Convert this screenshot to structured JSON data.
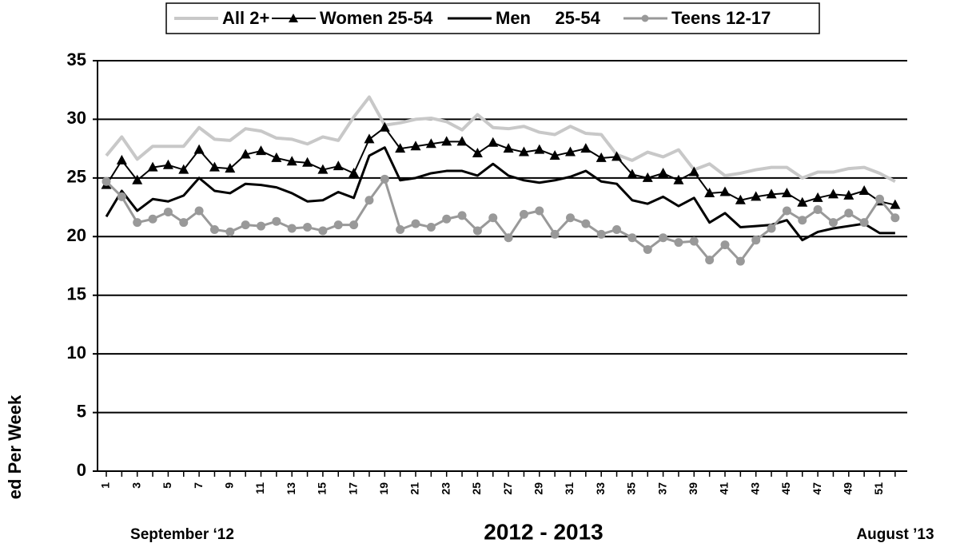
{
  "chart_data": {
    "type": "line",
    "categories": [
      1,
      null,
      3,
      null,
      5,
      null,
      7,
      null,
      9,
      null,
      11,
      null,
      13,
      null,
      15,
      null,
      17,
      null,
      19,
      null,
      21,
      null,
      23,
      null,
      25,
      null,
      27,
      null,
      29,
      null,
      31,
      null,
      33,
      null,
      35,
      null,
      37,
      null,
      39,
      null,
      41,
      null,
      43,
      null,
      45,
      null,
      47,
      null,
      49,
      null,
      51,
      null
    ],
    "ylim": [
      0,
      35
    ],
    "yticks": [
      0,
      5,
      10,
      15,
      20,
      25,
      30,
      35
    ],
    "grid": true,
    "y_label": "ed Per Week",
    "x_label": "2012 - 2013",
    "x_start_label": "September ‘12",
    "x_end_label": "August ’13",
    "legend": "top",
    "series": [
      {
        "name": "All 2+",
        "color": "#c8c8c8",
        "width": 4,
        "marker": null,
        "values": [
          26.9,
          28.5,
          26.6,
          27.7,
          27.7,
          27.7,
          29.3,
          28.3,
          28.2,
          29.2,
          29.0,
          28.4,
          28.3,
          27.9,
          28.5,
          28.2,
          30.2,
          31.9,
          29.5,
          29.7,
          30.0,
          30.1,
          29.8,
          29.1,
          30.4,
          29.3,
          29.2,
          29.4,
          28.9,
          28.7,
          29.4,
          28.8,
          28.7,
          27.0,
          26.5,
          27.2,
          26.8,
          27.4,
          25.7,
          26.2,
          25.2,
          25.4,
          25.7,
          25.9,
          25.9,
          25.0,
          25.5,
          25.5,
          25.8,
          25.9,
          25.4,
          24.7
        ]
      },
      {
        "name": "Women 25-54",
        "color": "#000000",
        "width": 2,
        "marker": "triangle",
        "values": [
          24.4,
          26.5,
          24.8,
          25.9,
          26.1,
          25.7,
          27.4,
          25.9,
          25.8,
          27.0,
          27.3,
          26.7,
          26.4,
          26.3,
          25.7,
          26.0,
          25.4,
          28.3,
          29.3,
          27.5,
          27.7,
          27.9,
          28.1,
          28.1,
          27.1,
          28.0,
          27.5,
          27.2,
          27.4,
          26.9,
          27.2,
          27.5,
          26.7,
          26.8,
          25.3,
          25.0,
          25.4,
          24.8,
          25.5,
          23.7,
          23.8,
          23.1,
          23.4,
          23.6,
          23.7,
          22.9,
          23.3,
          23.6,
          23.5,
          23.9,
          23.0,
          22.7
        ]
      },
      {
        "name": "Men     25-54",
        "color": "#000000",
        "width": 3,
        "marker": null,
        "values": [
          21.7,
          23.9,
          22.2,
          23.2,
          23.0,
          23.5,
          25.0,
          23.9,
          23.7,
          24.5,
          24.4,
          24.2,
          23.7,
          23.0,
          23.1,
          23.8,
          23.3,
          26.9,
          27.6,
          24.8,
          25.0,
          25.4,
          25.6,
          25.6,
          25.2,
          26.2,
          25.2,
          24.8,
          24.6,
          24.8,
          25.1,
          25.6,
          24.7,
          24.5,
          23.1,
          22.8,
          23.4,
          22.6,
          23.3,
          21.2,
          22.0,
          20.8,
          20.9,
          21.0,
          21.4,
          19.7,
          20.4,
          20.7,
          20.9,
          21.1,
          20.3,
          20.3
        ]
      },
      {
        "name": "Teens 12-17",
        "color": "#999999",
        "width": 3,
        "marker": "circle",
        "values": [
          24.7,
          23.4,
          21.2,
          21.5,
          22.1,
          21.2,
          22.2,
          20.6,
          20.4,
          21.0,
          20.9,
          21.3,
          20.7,
          20.8,
          20.5,
          21.0,
          21.0,
          23.1,
          24.9,
          20.6,
          21.1,
          20.8,
          21.5,
          21.8,
          20.5,
          21.6,
          19.9,
          21.9,
          22.2,
          20.2,
          21.6,
          21.1,
          20.2,
          20.6,
          19.9,
          18.9,
          19.9,
          19.5,
          19.6,
          18.0,
          19.3,
          17.9,
          19.7,
          20.7,
          22.2,
          21.4,
          22.3,
          21.2,
          22.0,
          21.2,
          23.2,
          21.6
        ]
      }
    ]
  }
}
